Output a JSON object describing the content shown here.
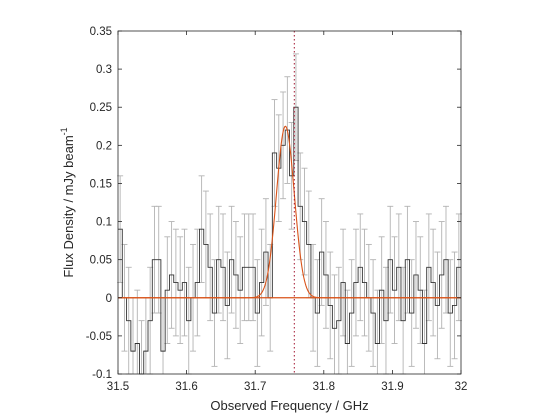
{
  "chart_data": {
    "type": "line",
    "title": "",
    "xlabel": "Observed Frequency / GHz",
    "ylabel": "Flux Density / mJy beam",
    "ylabel_superscript": "-1",
    "xlim": [
      31.5,
      32.0
    ],
    "ylim": [
      -0.1,
      0.35
    ],
    "xticks": [
      31.5,
      31.6,
      31.7,
      31.8,
      31.9,
      32.0
    ],
    "xtick_labels": [
      "31.5",
      "31.6",
      "31.7",
      "31.8",
      "31.9",
      "32"
    ],
    "yticks": [
      -0.1,
      -0.05,
      0,
      0.05,
      0.1,
      0.15,
      0.2,
      0.25,
      0.3,
      0.35
    ],
    "ytick_labels": [
      "-0.1",
      "-0.05",
      "0",
      "0.05",
      "0.1",
      "0.15",
      "0.2",
      "0.25",
      "0.3",
      "0.35"
    ],
    "grid": false,
    "box": true,
    "series": [
      {
        "kind": "step-histogram-with-errorbars",
        "color": "#333333",
        "errorbar_color": "#b3b3b3",
        "channel_width": 0.00625,
        "error": 0.07,
        "x": [
          31.5,
          31.50625,
          31.5125,
          31.51875,
          31.525,
          31.53125,
          31.5375,
          31.54375,
          31.55,
          31.55625,
          31.5625,
          31.56875,
          31.575,
          31.58125,
          31.5875,
          31.59375,
          31.6,
          31.60625,
          31.6125,
          31.61875,
          31.625,
          31.63125,
          31.6375,
          31.64375,
          31.65,
          31.65625,
          31.6625,
          31.66875,
          31.675,
          31.68125,
          31.6875,
          31.69375,
          31.7,
          31.70625,
          31.7125,
          31.71875,
          31.725,
          31.73125,
          31.7375,
          31.74375,
          31.75,
          31.75625,
          31.7625,
          31.76875,
          31.775,
          31.78125,
          31.7875,
          31.79375,
          31.8,
          31.80625,
          31.8125,
          31.81875,
          31.825,
          31.83125,
          31.8375,
          31.84375,
          31.85,
          31.85625,
          31.8625,
          31.86875,
          31.875,
          31.88125,
          31.8875,
          31.89375,
          31.9,
          31.90625,
          31.9125,
          31.91875,
          31.925,
          31.93125,
          31.9375,
          31.94375,
          31.95,
          31.95625,
          31.9625,
          31.96875,
          31.975,
          31.98125,
          31.9875,
          31.99375
        ],
        "values": [
          0.09,
          0.0,
          -0.03,
          -0.07,
          -0.06,
          -0.1,
          -0.07,
          -0.03,
          0.05,
          0.05,
          -0.07,
          0.01,
          0.03,
          0.02,
          0.01,
          0.02,
          -0.03,
          0.0,
          0.02,
          0.09,
          0.07,
          0.04,
          -0.02,
          0.05,
          0.04,
          -0.01,
          0.05,
          0.03,
          0.01,
          0.04,
          0.04,
          0.04,
          -0.02,
          0.02,
          0.06,
          0.0,
          0.19,
          0.17,
          0.2,
          0.22,
          0.16,
          0.25,
          0.12,
          0.1,
          0.07,
          0.0,
          -0.02,
          0.06,
          0.03,
          -0.01,
          -0.04,
          -0.03,
          0.02,
          -0.06,
          -0.02,
          0.02,
          0.04,
          0.02,
          0.0,
          -0.02,
          -0.06,
          0.01,
          -0.03,
          0.05,
          0.01,
          0.04,
          -0.03,
          0.05,
          -0.02,
          0.03,
          0.01,
          -0.06,
          0.04,
          0.02,
          -0.01,
          0.03,
          0.05,
          -0.02,
          -0.01,
          0.04
        ]
      },
      {
        "kind": "gaussian-fit",
        "color": "#d95319",
        "amplitude": 0.225,
        "center": 31.744,
        "sigma": 0.013
      },
      {
        "kind": "baseline",
        "color": "#d95319",
        "value": 0
      },
      {
        "kind": "vertical-marker",
        "color": "#a2142f",
        "style": "dotted",
        "x": 31.757
      }
    ]
  }
}
